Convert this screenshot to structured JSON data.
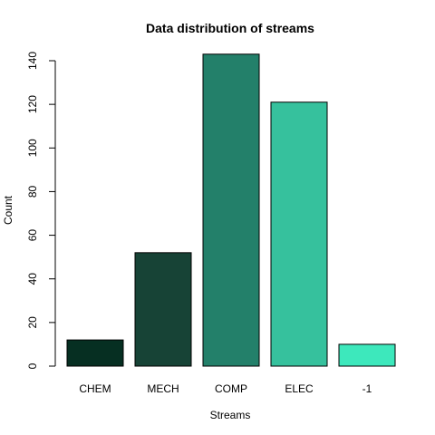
{
  "chart_data": {
    "type": "bar",
    "title": "Data distribution of streams",
    "xlabel": "Streams",
    "ylabel": "Count",
    "categories": [
      "CHEM",
      "MECH",
      "COMP",
      "ELEC",
      "-1"
    ],
    "values": [
      12,
      52,
      143,
      121,
      10
    ],
    "colors": [
      "#062f22",
      "#174336",
      "#23806a",
      "#36c19d",
      "#3de8bc"
    ],
    "ylim": [
      0,
      140
    ],
    "yticks": [
      0,
      20,
      40,
      60,
      80,
      100,
      120,
      140
    ],
    "grid": false,
    "legend": "none"
  }
}
